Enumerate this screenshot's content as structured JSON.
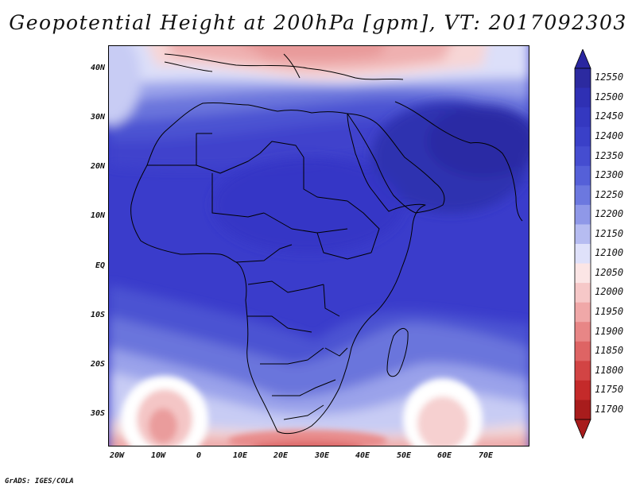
{
  "title": "Geopotential Height at 200hPa [gpm], VT: 2017092303",
  "credit": "GrADS: IGES/COLA",
  "map": {
    "variable": "Geopotential height at 200 hPa",
    "units": "gpm",
    "valid_time": "2017092303",
    "region_lon_range": [
      -22,
      80
    ],
    "region_lat_range": [
      -37,
      45
    ],
    "lat_ticks": [
      "40N",
      "30N",
      "20N",
      "10N",
      "EQ",
      "10S",
      "20S",
      "30S"
    ],
    "lat_tick_values": [
      40,
      30,
      20,
      10,
      0,
      -10,
      -20,
      -30
    ],
    "lon_ticks": [
      "20W",
      "10W",
      "0",
      "10E",
      "20E",
      "30E",
      "40E",
      "50E",
      "60E",
      "70E"
    ],
    "lon_tick_values": [
      -20,
      -10,
      0,
      10,
      20,
      30,
      40,
      50,
      60,
      70
    ]
  },
  "colorbar": {
    "labels": [
      "12550",
      "12500",
      "12450",
      "12400",
      "12350",
      "12300",
      "12250",
      "12200",
      "12150",
      "12100",
      "12050",
      "12000",
      "11950",
      "11900",
      "11850",
      "11800",
      "11750",
      "11700"
    ],
    "colors": [
      "#2c2aa0",
      "#2f30b4",
      "#3438c0",
      "#3a40c8",
      "#454dd0",
      "#5560d8",
      "#6c78df",
      "#8f98e8",
      "#b6bcf1",
      "#dfe1fa",
      "#fbe5e5",
      "#f6c8c8",
      "#f0a8a8",
      "#e88686",
      "#de6464",
      "#d24444",
      "#c42a2a",
      "#a81c1c"
    ],
    "arrow_top_color": "#2a26a0",
    "arrow_bottom_color": "#a81c1c"
  }
}
